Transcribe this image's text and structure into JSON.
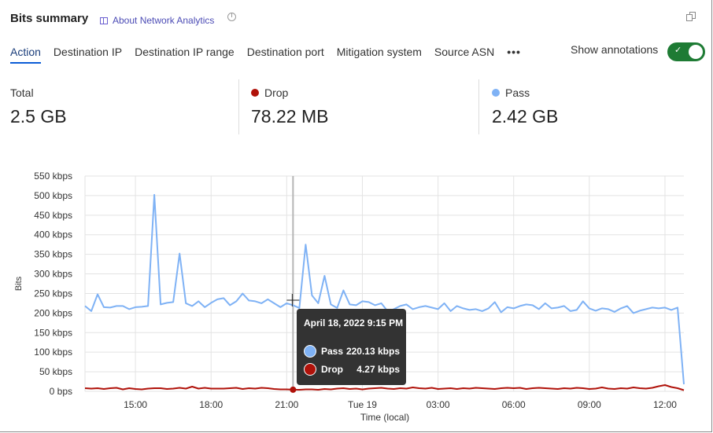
{
  "header": {
    "title": "Bits summary",
    "about_link": "About Network Analytics",
    "history_icon": "pie-clock-icon",
    "expand_icon": "copy-icon"
  },
  "tabs": [
    {
      "label": "Action",
      "active": true
    },
    {
      "label": "Destination IP"
    },
    {
      "label": "Destination IP range"
    },
    {
      "label": "Destination port"
    },
    {
      "label": "Mitigation system"
    },
    {
      "label": "Source ASN"
    },
    {
      "label": "•••"
    }
  ],
  "annotations": {
    "label": "Show annotations",
    "enabled": true
  },
  "stats": [
    {
      "label": "Total",
      "value": "2.5 GB"
    },
    {
      "label": "Drop",
      "value": "78.22 MB",
      "color": "#b0120a"
    },
    {
      "label": "Pass",
      "value": "2.42 GB",
      "color": "#7fb2f5"
    }
  ],
  "tooltip": {
    "title": "April 18, 2022 9:15 PM",
    "rows": [
      {
        "label": "Pass",
        "value": "220.13 kbps",
        "color": "#7fb2f5"
      },
      {
        "label": "Drop",
        "value": "4.27 kbps",
        "color": "#b0120a"
      }
    ]
  },
  "chart_data": {
    "type": "line",
    "xlabel": "Time (local)",
    "ylabel": "Bits",
    "ylim": [
      0,
      550
    ],
    "yticks": [
      "0 bps",
      "50 kbps",
      "100 kbps",
      "150 kbps",
      "200 kbps",
      "250 kbps",
      "300 kbps",
      "350 kbps",
      "400 kbps",
      "450 kbps",
      "500 kbps",
      "550 kbps"
    ],
    "xticks": [
      {
        "label": "15:00",
        "t": "15:00"
      },
      {
        "label": "18:00",
        "t": "18:00"
      },
      {
        "label": "21:00",
        "t": "21:00"
      },
      {
        "label": "Tue 19",
        "t": "+00:00"
      },
      {
        "label": "03:00",
        "t": "+03:00"
      },
      {
        "label": "06:00",
        "t": "+06:00"
      },
      {
        "label": "09:00",
        "t": "+09:00"
      },
      {
        "label": "12:00",
        "t": "+12:00"
      }
    ],
    "grid": true,
    "x": [
      "13:00",
      "13:15",
      "13:30",
      "13:45",
      "14:00",
      "14:15",
      "14:30",
      "14:45",
      "15:00",
      "15:15",
      "15:30",
      "15:45",
      "16:00",
      "16:15",
      "16:30",
      "16:45",
      "17:00",
      "17:15",
      "17:30",
      "17:45",
      "18:00",
      "18:15",
      "18:30",
      "18:45",
      "19:00",
      "19:15",
      "19:30",
      "19:45",
      "20:00",
      "20:15",
      "20:30",
      "20:45",
      "21:00",
      "21:15",
      "21:30",
      "21:45",
      "22:00",
      "22:15",
      "22:30",
      "22:45",
      "23:00",
      "23:15",
      "23:30",
      "23:45",
      "+00:00",
      "+00:15",
      "+00:30",
      "+00:45",
      "+01:00",
      "+01:15",
      "+01:30",
      "+01:45",
      "+02:00",
      "+02:15",
      "+02:30",
      "+02:45",
      "+03:00",
      "+03:15",
      "+03:30",
      "+03:45",
      "+04:00",
      "+04:15",
      "+04:30",
      "+04:45",
      "+05:00",
      "+05:15",
      "+05:30",
      "+05:45",
      "+06:00",
      "+06:15",
      "+06:30",
      "+06:45",
      "+07:00",
      "+07:15",
      "+07:30",
      "+07:45",
      "+08:00",
      "+08:15",
      "+08:30",
      "+08:45",
      "+09:00",
      "+09:15",
      "+09:30",
      "+09:45",
      "+10:00",
      "+10:15",
      "+10:30",
      "+10:45",
      "+11:00",
      "+11:15",
      "+11:30",
      "+11:45",
      "+12:00",
      "+12:15",
      "+12:30",
      "+12:45"
    ],
    "series": [
      {
        "name": "Pass",
        "color": "#7fb2f5",
        "values": [
          218,
          205,
          248,
          215,
          214,
          218,
          218,
          210,
          215,
          216,
          218,
          502,
          222,
          226,
          228,
          352,
          225,
          218,
          230,
          215,
          226,
          235,
          238,
          220,
          230,
          250,
          232,
          230,
          225,
          235,
          225,
          215,
          225,
          220,
          213,
          375,
          245,
          225,
          295,
          222,
          213,
          258,
          222,
          220,
          230,
          228,
          220,
          225,
          205,
          210,
          218,
          222,
          210,
          215,
          218,
          214,
          210,
          225,
          205,
          218,
          212,
          208,
          210,
          205,
          212,
          228,
          202,
          215,
          212,
          218,
          222,
          220,
          210,
          225,
          212,
          214,
          218,
          205,
          208,
          230,
          212,
          206,
          212,
          210,
          203,
          212,
          218,
          200,
          206,
          210,
          214,
          212,
          214,
          208,
          214,
          18
        ]
      },
      {
        "name": "Drop",
        "color": "#b0120a",
        "values": [
          8,
          7,
          8,
          6,
          8,
          9,
          5,
          8,
          6,
          5,
          7,
          8,
          8,
          6,
          7,
          9,
          7,
          12,
          7,
          9,
          7,
          7,
          7,
          8,
          9,
          6,
          8,
          7,
          9,
          8,
          6,
          5,
          5,
          4.27,
          4,
          5,
          5,
          4,
          6,
          5,
          7,
          8,
          6,
          7,
          5,
          7,
          8,
          9,
          7,
          6,
          8,
          7,
          10,
          8,
          7,
          9,
          6,
          7,
          8,
          6,
          8,
          7,
          9,
          8,
          7,
          6,
          8,
          9,
          8,
          9,
          6,
          8,
          9,
          8,
          7,
          6,
          8,
          7,
          9,
          8,
          6,
          7,
          10,
          7,
          6,
          8,
          7,
          10,
          8,
          7,
          9,
          13,
          16,
          11,
          8,
          3
        ]
      }
    ],
    "hover_index": 33
  }
}
